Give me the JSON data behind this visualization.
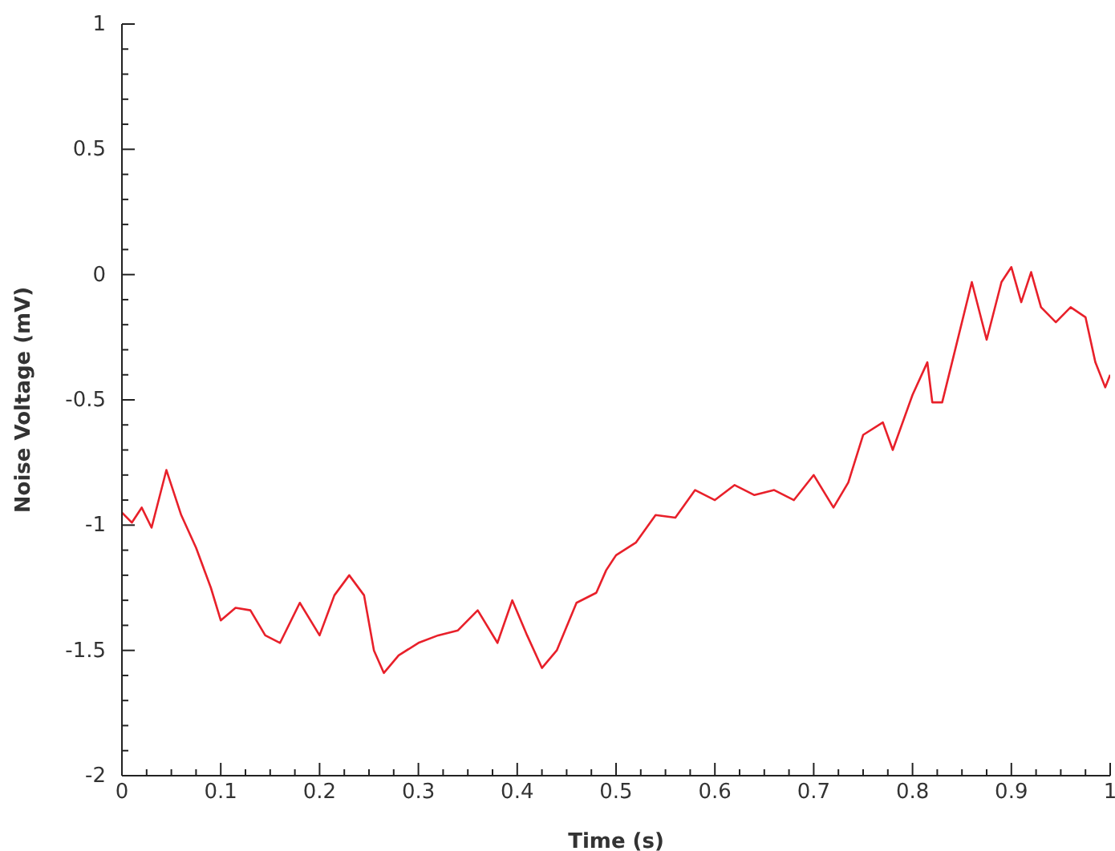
{
  "chart_data": {
    "type": "line",
    "xlabel": "Time (s)",
    "ylabel": "Noise Voltage (mV)",
    "xlim": [
      0,
      1
    ],
    "ylim": [
      -2,
      1
    ],
    "xticks": [
      0,
      {
        "value": 0.025,
        "label": null
      },
      {
        "value": 0.05,
        "label": null
      },
      {
        "value": 0.075,
        "label": null
      },
      0.1,
      {
        "value": 0.125,
        "label": null
      },
      {
        "value": 0.15,
        "label": null
      },
      {
        "value": 0.175,
        "label": null
      },
      0.2,
      {
        "value": 0.225,
        "label": null
      },
      {
        "value": 0.25,
        "label": null
      },
      {
        "value": 0.275,
        "label": null
      },
      0.3,
      {
        "value": 0.325,
        "label": null
      },
      {
        "value": 0.35,
        "label": null
      },
      {
        "value": 0.375,
        "label": null
      },
      0.4,
      {
        "value": 0.425,
        "label": null
      },
      {
        "value": 0.45,
        "label": null
      },
      {
        "value": 0.475,
        "label": null
      },
      0.5,
      {
        "value": 0.525,
        "label": null
      },
      {
        "value": 0.55,
        "label": null
      },
      {
        "value": 0.575,
        "label": null
      },
      0.6,
      {
        "value": 0.625,
        "label": null
      },
      {
        "value": 0.65,
        "label": null
      },
      {
        "value": 0.675,
        "label": null
      },
      0.7,
      {
        "value": 0.725,
        "label": null
      },
      {
        "value": 0.75,
        "label": null
      },
      {
        "value": 0.775,
        "label": null
      },
      0.8,
      {
        "value": 0.825,
        "label": null
      },
      {
        "value": 0.85,
        "label": null
      },
      {
        "value": 0.875,
        "label": null
      },
      0.9,
      {
        "value": 0.925,
        "label": null
      },
      {
        "value": 0.95,
        "label": null
      },
      {
        "value": 0.975,
        "label": null
      },
      1
    ],
    "yticks": [
      -2,
      {
        "value": -1.9,
        "label": null
      },
      {
        "value": -1.8,
        "label": null
      },
      {
        "value": -1.7,
        "label": null
      },
      {
        "value": -1.6,
        "label": null
      },
      -1.5,
      {
        "value": -1.4,
        "label": null
      },
      {
        "value": -1.3,
        "label": null
      },
      {
        "value": -1.2,
        "label": null
      },
      {
        "value": -1.1,
        "label": null
      },
      -1,
      {
        "value": -0.9,
        "label": null
      },
      {
        "value": -0.8,
        "label": null
      },
      {
        "value": -0.7,
        "label": null
      },
      {
        "value": -0.6,
        "label": null
      },
      -0.5,
      {
        "value": -0.4,
        "label": null
      },
      {
        "value": -0.3,
        "label": null
      },
      {
        "value": -0.2,
        "label": null
      },
      {
        "value": -0.1,
        "label": null
      },
      0,
      {
        "value": 0.1,
        "label": null
      },
      {
        "value": 0.2,
        "label": null
      },
      {
        "value": 0.3,
        "label": null
      },
      {
        "value": 0.4,
        "label": null
      },
      0.5,
      {
        "value": 0.6,
        "label": null
      },
      {
        "value": 0.7,
        "label": null
      },
      {
        "value": 0.8,
        "label": null
      },
      {
        "value": 0.9,
        "label": null
      },
      1
    ],
    "grid": false,
    "legend": false,
    "marker": "none",
    "line_style": "solid",
    "x": [
      0,
      0.01,
      0.02,
      0.03,
      0.045,
      0.06,
      0.075,
      0.09,
      0.1,
      0.115,
      0.13,
      0.145,
      0.16,
      0.18,
      0.2,
      0.215,
      0.23,
      0.245,
      0.255,
      0.265,
      0.28,
      0.3,
      0.32,
      0.34,
      0.36,
      0.38,
      0.395,
      0.41,
      0.425,
      0.44,
      0.46,
      0.48,
      0.49,
      0.5,
      0.52,
      0.54,
      0.56,
      0.58,
      0.6,
      0.62,
      0.64,
      0.66,
      0.68,
      0.7,
      0.72,
      0.735,
      0.75,
      0.77,
      0.78,
      0.8,
      0.815,
      0.82,
      0.83,
      0.84,
      0.86,
      0.875,
      0.89,
      0.9,
      0.91,
      0.92,
      0.93,
      0.945,
      0.96,
      0.975,
      0.985,
      0.995,
      1
    ],
    "series": [
      {
        "color": "#e8202a",
        "values": [
          -0.95,
          -0.99,
          -0.93,
          -1.01,
          -0.78,
          -0.96,
          -1.09,
          -1.25,
          -1.38,
          -1.33,
          -1.34,
          -1.44,
          -1.47,
          -1.31,
          -1.44,
          -1.28,
          -1.2,
          -1.28,
          -1.5,
          -1.59,
          -1.52,
          -1.47,
          -1.44,
          -1.42,
          -1.34,
          -1.47,
          -1.3,
          -1.44,
          -1.57,
          -1.5,
          -1.31,
          -1.27,
          -1.18,
          -1.12,
          -1.07,
          -0.96,
          -0.97,
          -0.86,
          -0.9,
          -0.84,
          -0.88,
          -0.86,
          -0.9,
          -0.8,
          -0.93,
          -0.83,
          -0.64,
          -0.59,
          -0.7,
          -0.48,
          -0.35,
          -0.51,
          -0.51,
          -0.35,
          -0.03,
          -0.26,
          -0.03,
          0.03,
          -0.11,
          0.01,
          -0.13,
          -0.19,
          -0.13,
          -0.17,
          -0.35,
          -0.45,
          -0.4
        ]
      }
    ]
  }
}
